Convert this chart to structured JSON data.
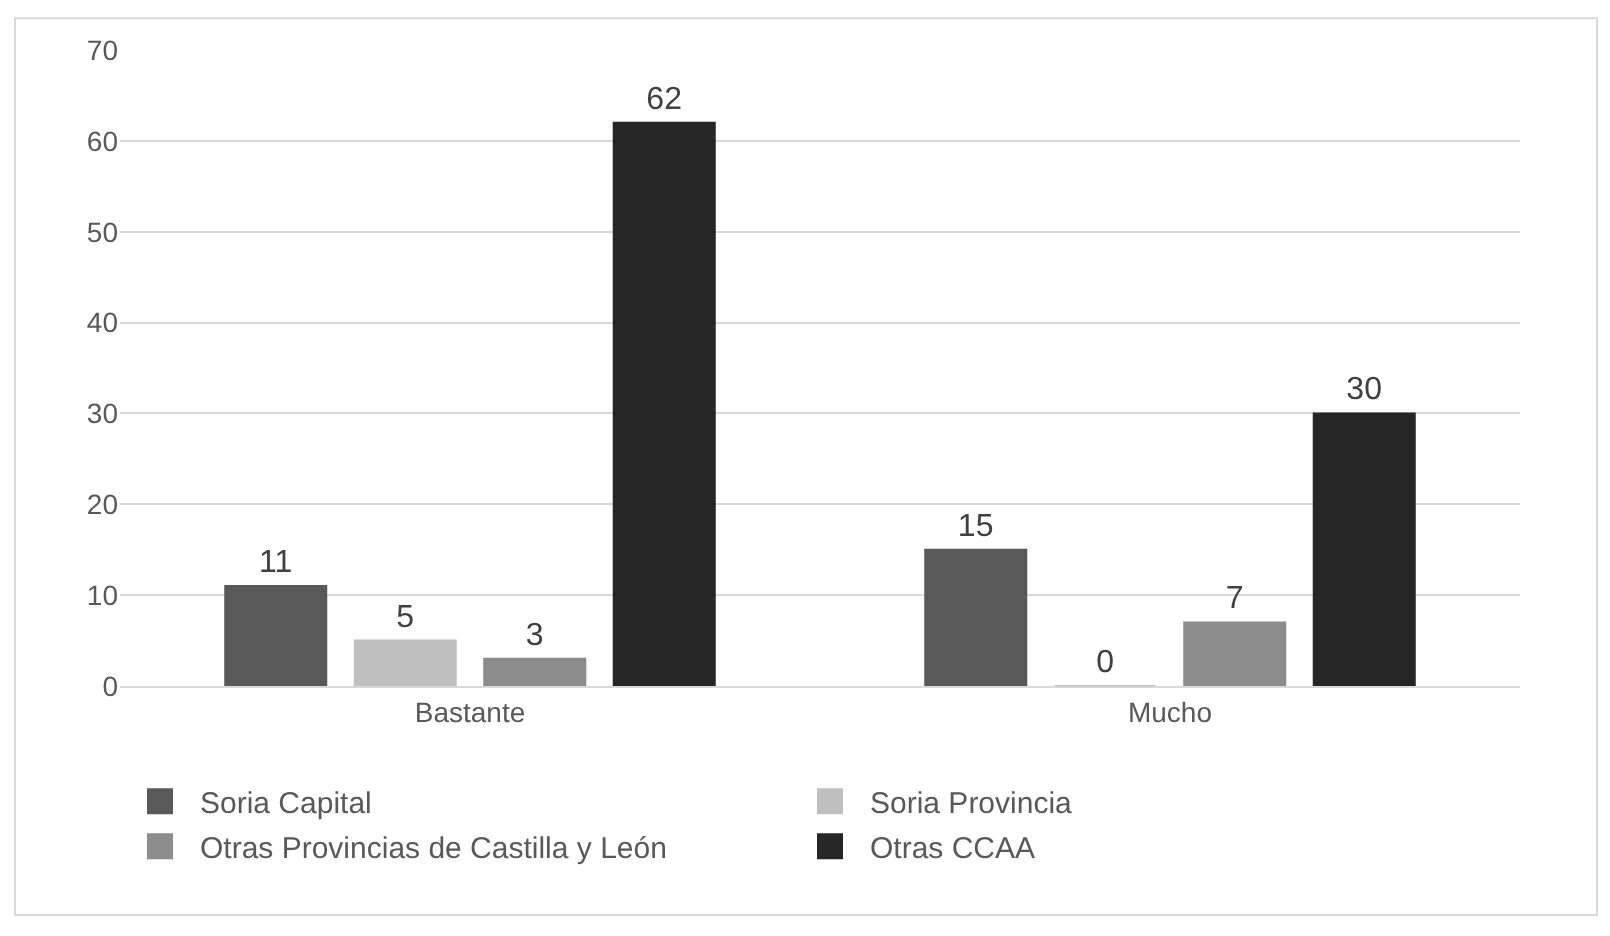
{
  "chart_data": {
    "type": "bar",
    "categories": [
      "Bastante",
      "Mucho"
    ],
    "series": [
      {
        "name": "Soria Capital",
        "color": "#595959",
        "values": [
          11,
          15
        ]
      },
      {
        "name": "Soria Provincia",
        "color": "#bfbfbf",
        "values": [
          5,
          0
        ]
      },
      {
        "name": "Otras Provincias de Castilla y León",
        "color": "#8c8c8c",
        "values": [
          3,
          7
        ]
      },
      {
        "name": "Otras CCAA",
        "color": "#262626",
        "values": [
          62,
          30
        ]
      }
    ],
    "ylim": [
      0,
      70
    ],
    "yticks": [
      0,
      10,
      20,
      30,
      40,
      50,
      60,
      70
    ],
    "grid": "y",
    "legend": "bottom",
    "data_labels": true
  }
}
